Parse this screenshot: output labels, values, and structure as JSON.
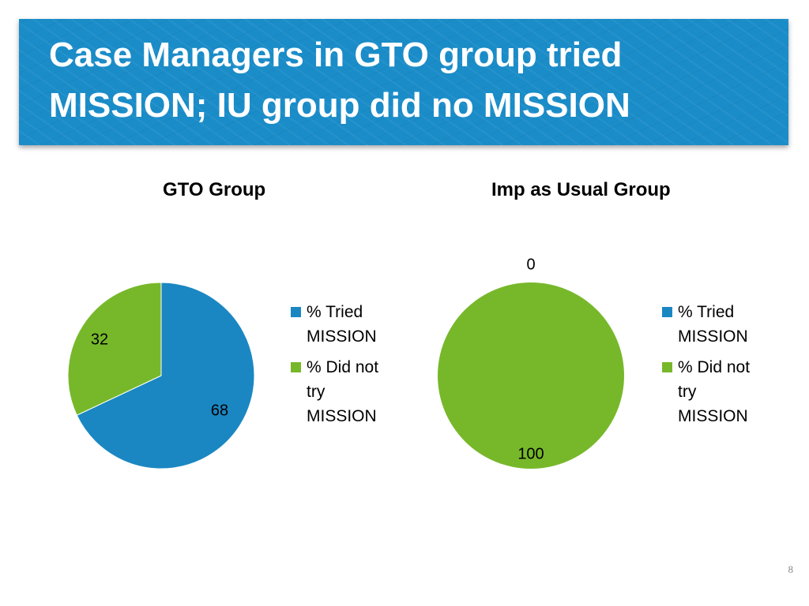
{
  "slide": {
    "title_line1": "Case Managers in GTO group tried",
    "title_line2": "MISSION; IU group did no MISSION",
    "page_number": "8"
  },
  "colors": {
    "banner": "#1a8cc8",
    "tried": "#1a87c2",
    "did_not_try": "#77b82b"
  },
  "chart_data": [
    {
      "type": "pie",
      "title": "GTO Group",
      "categories": [
        "% Tried MISSION",
        "% Did not try MISSION"
      ],
      "values": [
        68,
        32
      ],
      "data_labels": [
        "68",
        "32"
      ],
      "colors": [
        "#1a87c2",
        "#77b82b"
      ],
      "legend": {
        "position": "right",
        "items": [
          {
            "lines": [
              "% Tried",
              "MISSION"
            ],
            "color": "#1a87c2"
          },
          {
            "lines": [
              "% Did not",
              "try",
              "MISSION"
            ],
            "color": "#77b82b"
          }
        ]
      }
    },
    {
      "type": "pie",
      "title": "Imp as Usual Group",
      "categories": [
        "% Tried MISSION",
        "% Did not try MISSION"
      ],
      "values": [
        0,
        100
      ],
      "data_labels": [
        "0",
        "100"
      ],
      "colors": [
        "#1a87c2",
        "#77b82b"
      ],
      "legend": {
        "position": "right",
        "items": [
          {
            "lines": [
              "% Tried",
              "MISSION"
            ],
            "color": "#1a87c2"
          },
          {
            "lines": [
              "% Did not",
              "try",
              "MISSION"
            ],
            "color": "#77b82b"
          }
        ]
      }
    }
  ]
}
